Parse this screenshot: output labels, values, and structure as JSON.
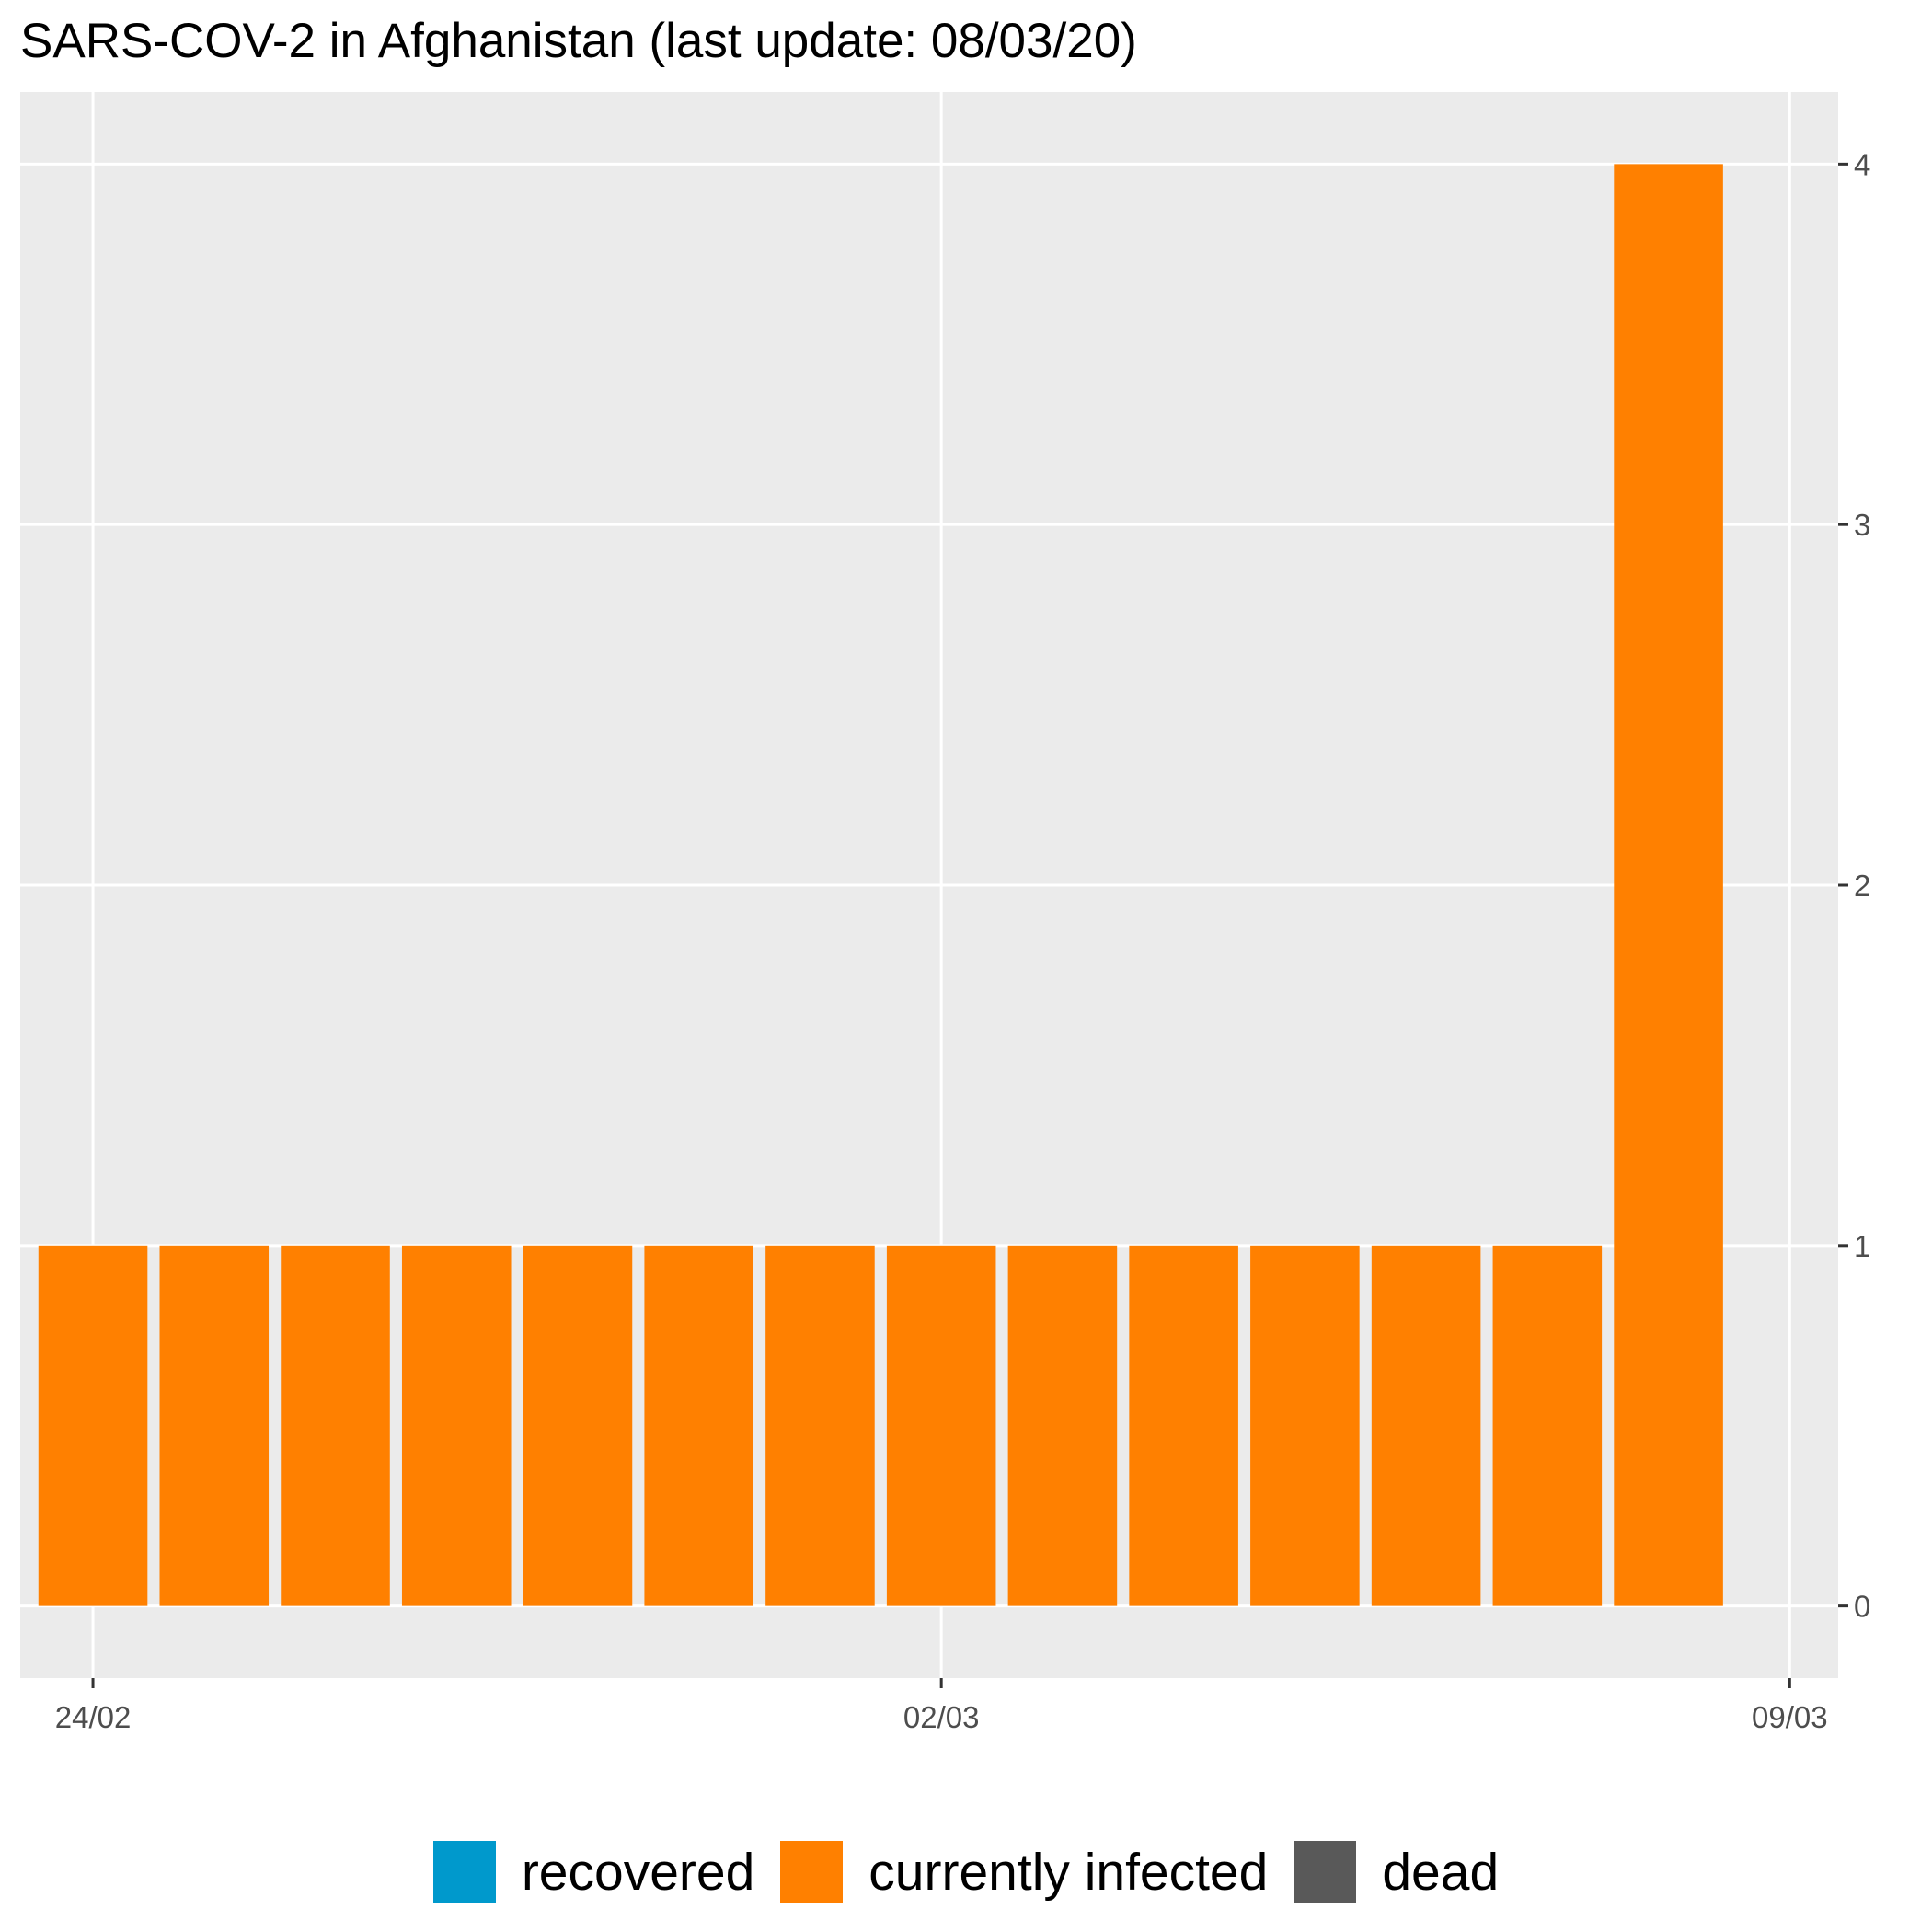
{
  "chart_data": {
    "type": "bar",
    "title": "SARS-COV-2 in Afghanistan (last update: 08/03/20)",
    "xlabel": "",
    "ylabel": "",
    "stacked": true,
    "x_axis": {
      "ticks": [
        "24/02",
        "02/03",
        "09/03"
      ]
    },
    "y_axis": {
      "position": "right",
      "ticks": [
        0,
        1,
        2,
        3,
        4
      ],
      "ylim": [
        -0.2,
        4.2
      ]
    },
    "categories": [
      "2020-02-24",
      "2020-02-25",
      "2020-02-26",
      "2020-02-27",
      "2020-02-28",
      "2020-02-29",
      "2020-03-01",
      "2020-03-02",
      "2020-03-03",
      "2020-03-04",
      "2020-03-05",
      "2020-03-06",
      "2020-03-07",
      "2020-03-08"
    ],
    "series": [
      {
        "name": "recovered",
        "color": "#0099CC",
        "values": [
          0,
          0,
          0,
          0,
          0,
          0,
          0,
          0,
          0,
          0,
          0,
          0,
          0,
          0
        ]
      },
      {
        "name": "currently infected",
        "color": "#FF8000",
        "values": [
          1,
          1,
          1,
          1,
          1,
          1,
          1,
          1,
          1,
          1,
          1,
          1,
          1,
          4
        ]
      },
      {
        "name": "dead",
        "color": "#595959",
        "values": [
          0,
          0,
          0,
          0,
          0,
          0,
          0,
          0,
          0,
          0,
          0,
          0,
          0,
          0
        ]
      }
    ],
    "grid": true,
    "legend_position": "bottom"
  }
}
